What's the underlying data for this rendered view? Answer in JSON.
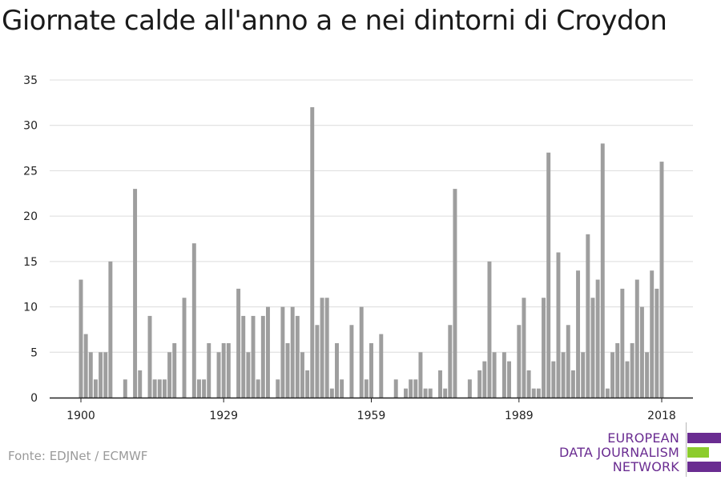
{
  "title": "Giornate calde all'anno a e nei dintorni di Croydon",
  "source": "Fonte: EDJNet / ECMWF",
  "logo": {
    "line1": "EUROPEAN",
    "line2": "DATA JOURNALISM",
    "line3": "NETWORK"
  },
  "colors": {
    "bar": "#9e9e9e",
    "grid": "#dcdcdc",
    "axis": "#222222",
    "logo_purple": "#6a2c91",
    "logo_green": "#8ccc2d"
  },
  "chart_data": {
    "type": "bar",
    "title": "Giornate calde all'anno a e nei dintorni di Croydon",
    "xlabel": "",
    "ylabel": "",
    "x_ticks": [
      1900,
      1929,
      1959,
      1989,
      2018
    ],
    "y_ticks": [
      0,
      5,
      10,
      15,
      20,
      25,
      30,
      35
    ],
    "xlim": [
      1900,
      2018
    ],
    "ylim": [
      0,
      35
    ],
    "grid": true,
    "years": [
      1900,
      1901,
      1902,
      1903,
      1904,
      1905,
      1906,
      1907,
      1908,
      1909,
      1910,
      1911,
      1912,
      1913,
      1914,
      1915,
      1916,
      1917,
      1918,
      1919,
      1920,
      1921,
      1922,
      1923,
      1924,
      1925,
      1926,
      1927,
      1928,
      1929,
      1930,
      1931,
      1932,
      1933,
      1934,
      1935,
      1936,
      1937,
      1938,
      1939,
      1940,
      1941,
      1942,
      1943,
      1944,
      1945,
      1946,
      1947,
      1948,
      1949,
      1950,
      1951,
      1952,
      1953,
      1954,
      1955,
      1956,
      1957,
      1958,
      1959,
      1960,
      1961,
      1962,
      1963,
      1964,
      1965,
      1966,
      1967,
      1968,
      1969,
      1970,
      1971,
      1972,
      1973,
      1974,
      1975,
      1976,
      1977,
      1978,
      1979,
      1980,
      1981,
      1982,
      1983,
      1984,
      1985,
      1986,
      1987,
      1988,
      1989,
      1990,
      1991,
      1992,
      1993,
      1994,
      1995,
      1996,
      1997,
      1998,
      1999,
      2000,
      2001,
      2002,
      2003,
      2004,
      2005,
      2006,
      2007,
      2008,
      2009,
      2010,
      2011,
      2012,
      2013,
      2014,
      2015,
      2016,
      2017,
      2018
    ],
    "values": [
      13,
      7,
      5,
      2,
      5,
      5,
      15,
      0,
      0,
      2,
      0,
      23,
      3,
      0,
      9,
      2,
      2,
      2,
      5,
      6,
      0,
      11,
      0,
      17,
      2,
      2,
      6,
      0,
      5,
      6,
      6,
      0,
      12,
      9,
      5,
      9,
      2,
      9,
      10,
      0,
      2,
      10,
      6,
      10,
      9,
      5,
      3,
      32,
      8,
      11,
      11,
      1,
      6,
      2,
      0,
      8,
      0,
      10,
      2,
      6,
      0,
      7,
      0,
      0,
      2,
      0,
      1,
      2,
      2,
      5,
      1,
      1,
      0,
      3,
      1,
      8,
      23,
      0,
      0,
      2,
      0,
      3,
      4,
      15,
      5,
      0,
      5,
      4,
      0,
      8,
      11,
      3,
      1,
      1,
      11,
      27,
      4,
      16,
      5,
      8,
      3,
      14,
      5,
      18,
      11,
      13,
      28,
      1,
      5,
      6,
      12,
      4,
      6,
      13,
      10,
      5,
      14,
      12,
      26
    ]
  }
}
